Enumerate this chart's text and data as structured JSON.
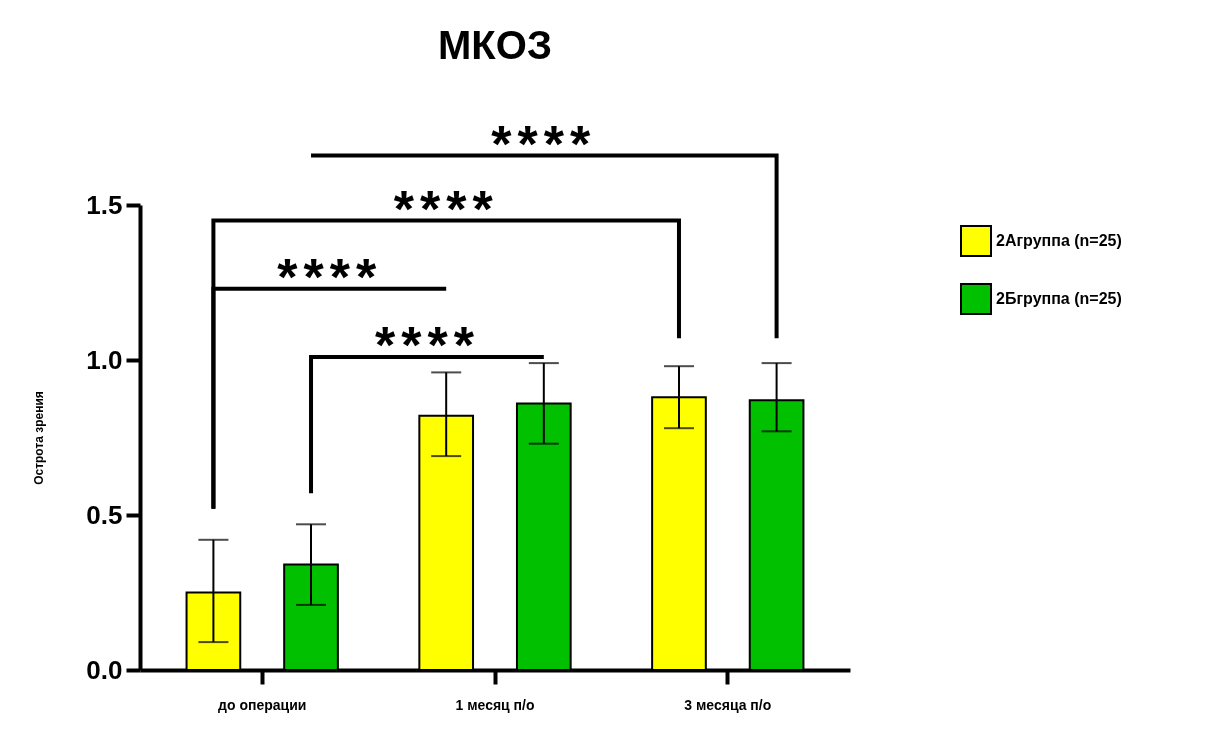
{
  "chart_data": {
    "type": "bar",
    "title": "МКОЗ",
    "ylabel": "Острота зрения",
    "categories": [
      "до операции",
      "1 месяц п/о",
      "3 месяца п/о"
    ],
    "series": [
      {
        "name": "2Aгруппа (n=25)",
        "color": "#ffff00",
        "values": [
          0.25,
          0.82,
          0.88
        ],
        "errors": [
          [
            0.09,
            0.42
          ],
          [
            0.69,
            0.96
          ],
          [
            0.78,
            0.98
          ]
        ]
      },
      {
        "name": "2Бгруппа (n=25)",
        "color": "#00c000",
        "values": [
          0.34,
          0.86,
          0.87
        ],
        "errors": [
          [
            0.21,
            0.47
          ],
          [
            0.73,
            0.99
          ],
          [
            0.77,
            0.99
          ]
        ]
      }
    ],
    "ylim": [
      0,
      1.5
    ],
    "yticks": [
      {
        "value": 0,
        "label": "0.0"
      },
      {
        "value": 0.5,
        "label": "0.5"
      },
      {
        "value": 1,
        "label": "1.0"
      },
      {
        "value": 1.5,
        "label": "1.5"
      }
    ],
    "legend": "right",
    "grid": false,
    "annotations": [
      "****",
      "****",
      "****",
      "****"
    ]
  }
}
